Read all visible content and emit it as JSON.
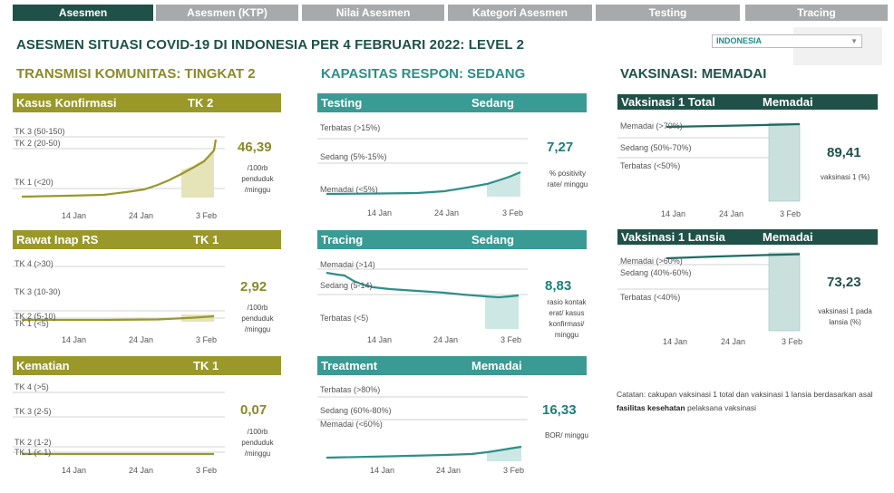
{
  "tabs": [
    "Asesmen",
    "Asesmen (KTP)",
    "Nilai Asesmen",
    "Kategori Asesmen",
    "Testing",
    "Tracing"
  ],
  "title": "ASESMEN SITUASI COVID-19 DI INDONESIA PER 4 FEBRUARI 2022: LEVEL 2",
  "region": "INDONESIA",
  "sections": {
    "transmisi": "TRANSMISI KOMUNITAS: TINGKAT 2",
    "kapasitas": "KAPASITAS RESPON: SEDANG",
    "vaksinasi": "VAKSINASI: MEMADAI"
  },
  "x_ticks": [
    "14 Jan",
    "24 Jan",
    "3 Feb"
  ],
  "panels": {
    "kasus": {
      "name": "Kasus Konfirmasi",
      "level": "TK 2",
      "value": "46,39",
      "unit": [
        "/100rb",
        "penduduk",
        "/minggu"
      ],
      "levels": [
        "TK 3 (50-150)",
        "TK 2 (20-50)",
        "TK 1 (<20)"
      ]
    },
    "rawat": {
      "name": "Rawat Inap RS",
      "level": "TK 1",
      "value": "2,92",
      "unit": [
        "/100rb",
        "penduduk",
        "/minggu"
      ],
      "levels": [
        "TK 4 (>30)",
        "TK 3 (10-30)",
        "TK 2 (5-10)",
        "TK 1 (<5)"
      ]
    },
    "kematian": {
      "name": "Kematian",
      "level": "TK 1",
      "value": "0,07",
      "unit": [
        "/100rb",
        "penduduk",
        "/minggu"
      ],
      "levels": [
        "TK 4 (>5)",
        "TK 3 (2-5)",
        "TK 2 (1-2)",
        "TK 1 (< 1)"
      ]
    },
    "testing": {
      "name": "Testing",
      "level": "Sedang",
      "value": "7,27",
      "unit": [
        "% positivity",
        "rate/ minggu"
      ],
      "levels": [
        "Terbatas (>15%)",
        "Sedang (5%-15%)",
        "Memadai (<5%)"
      ]
    },
    "tracing": {
      "name": "Tracing",
      "level": "Sedang",
      "value": "8,83",
      "unit": [
        "rasio kontak",
        "erat/ kasus",
        "konfirmasi/",
        "minggu"
      ],
      "levels": [
        "Memadai (>14)",
        "Sedang (5-14)",
        "Terbatas (<5)"
      ]
    },
    "treatment": {
      "name": "Treatment",
      "level": "Memadai",
      "value": "16,33",
      "unit": [
        "BOR/ minggu"
      ],
      "levels": [
        "Terbatas (>80%)",
        "Sedang (60%-80%)",
        "Memadai (<60%)"
      ]
    },
    "vaks_total": {
      "name": "Vaksinasi 1 Total",
      "level": "Memadai",
      "value": "89,41",
      "unit": [
        "vaksinasi 1 (%)"
      ],
      "levels": [
        "Memadai (>70%)",
        "Sedang (50%-70%)",
        "Terbatas (<50%)"
      ]
    },
    "vaks_lansia": {
      "name": "Vaksinasi 1 Lansia",
      "level": "Memadai",
      "value": "73,23",
      "unit": [
        "vaksinasi 1 pada",
        "lansia (%)"
      ],
      "levels": [
        "Memadai (>60%)",
        "Sedang (40%-60%)",
        "Terbatas (<40%)"
      ]
    }
  },
  "note": {
    "pre": "Catatan: cakupan vaksinasi 1 total dan vaksinasi 1 lansia berdasarkan asal ",
    "bold": "fasilitas kesehatan",
    "post": " pelaksana vaksinasi"
  },
  "colors": {
    "olive": "#999829",
    "teal": "#3a9a94",
    "dark": "#1f5148",
    "tab": "#a7a9ab"
  }
}
